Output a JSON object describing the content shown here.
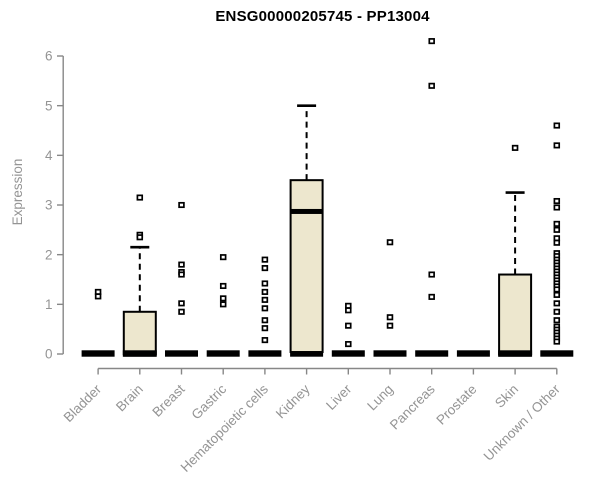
{
  "chart_data": {
    "type": "boxplot",
    "title": "ENSG00000205745 - PP13004",
    "ylabel": "Expression",
    "xlabel": "",
    "ylim": [
      0,
      6
    ],
    "yticks": [
      0,
      1,
      2,
      3,
      4,
      5,
      6
    ],
    "grid": false,
    "legend": "none",
    "categories": [
      "Bladder",
      "Brain",
      "Breast",
      "Gastric",
      "Hematopoietic cells",
      "Kidney",
      "Liver",
      "Lung",
      "Pancreas",
      "Prostate",
      "Skin",
      "Unknown / Other"
    ],
    "series": [
      {
        "name": "Bladder",
        "q1": 0,
        "median": 0,
        "q3": 0,
        "whisker_high": 0,
        "outliers": [
          1.25,
          1.16
        ]
      },
      {
        "name": "Brain",
        "q1": 0,
        "median": 0.02,
        "q3": 0.85,
        "whisker_high": 2.15,
        "outliers": [
          3.15,
          2.4,
          2.35
        ]
      },
      {
        "name": "Breast",
        "q1": 0,
        "median": 0,
        "q3": 0,
        "whisker_high": 0,
        "outliers": [
          3.0,
          1.8,
          1.65,
          1.6,
          1.02,
          0.85
        ]
      },
      {
        "name": "Gastric",
        "q1": 0,
        "median": 0,
        "q3": 0,
        "whisker_high": 0,
        "outliers": [
          1.95,
          1.37,
          1.12,
          1.0
        ]
      },
      {
        "name": "Hematopoietic cells",
        "q1": 0,
        "median": 0,
        "q3": 0,
        "whisker_high": 0,
        "outliers": [
          1.9,
          1.73,
          1.42,
          1.25,
          1.09,
          0.92,
          0.68,
          0.52,
          0.28
        ]
      },
      {
        "name": "Kidney",
        "q1": 0.04,
        "median": 2.87,
        "q3": 3.5,
        "whisker_high": 5.0,
        "outliers": []
      },
      {
        "name": "Liver",
        "q1": 0,
        "median": 0,
        "q3": 0,
        "whisker_high": 0,
        "outliers": [
          0.97,
          0.88,
          0.57,
          0.2
        ]
      },
      {
        "name": "Lung",
        "q1": 0,
        "median": 0,
        "q3": 0,
        "whisker_high": 0,
        "outliers": [
          2.25,
          0.74,
          0.57
        ]
      },
      {
        "name": "Pancreas",
        "q1": 0,
        "median": 0,
        "q3": 0,
        "whisker_high": 0,
        "outliers": [
          6.3,
          5.4,
          1.6,
          1.15
        ]
      },
      {
        "name": "Prostate",
        "q1": 0,
        "median": 0,
        "q3": 0,
        "whisker_high": 0,
        "outliers": []
      },
      {
        "name": "Skin",
        "q1": 0,
        "median": 0.02,
        "q3": 1.6,
        "whisker_high": 3.25,
        "outliers": [
          4.15
        ]
      },
      {
        "name": "Unknown / Other",
        "q1": 0,
        "median": 0,
        "q3": 0,
        "whisker_high": 0,
        "outliers": [
          4.6,
          4.2,
          3.08,
          2.95,
          2.62,
          2.5,
          2.33,
          2.24,
          2.03,
          1.97,
          1.9,
          1.84,
          1.78,
          1.72,
          1.66,
          1.6,
          1.54,
          1.48,
          1.42,
          1.36,
          1.3,
          1.19,
          1.02,
          0.85,
          0.68,
          0.55,
          0.49,
          0.43,
          0.37,
          0.31,
          0.25
        ]
      }
    ],
    "colors": {
      "box_fill": "#EDE7CE",
      "box_border": "#000000",
      "median": "#000000",
      "outlier_stroke": "#000000",
      "outlier_fill": "#ffffff",
      "axis_line": "#878787",
      "tick_label": "#949494",
      "title": "#000000",
      "background": "#ffffff"
    }
  }
}
